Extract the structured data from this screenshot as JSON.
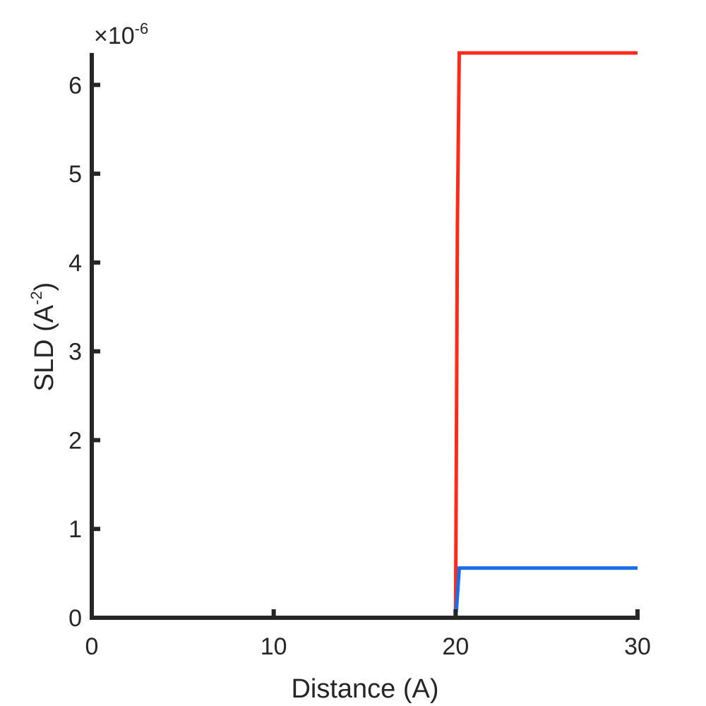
{
  "chart_data": {
    "type": "line",
    "xlabel": "Distance (A)",
    "ylabel": {
      "base": "SLD (A",
      "superscript": "-2",
      "close": ")"
    },
    "y_exponent": {
      "prefix": "×10",
      "power": "-6"
    },
    "xlim": [
      0,
      30
    ],
    "ylim": [
      0,
      6.36
    ],
    "x_ticks": [
      0,
      10,
      20,
      30
    ],
    "y_ticks": [
      0,
      1,
      2,
      3,
      4,
      5,
      6
    ],
    "grid": false,
    "legend": "none",
    "series": [
      {
        "color": "#ff2a18",
        "x": [
          0,
          20,
          20.1,
          20.2,
          30
        ],
        "y": [
          0,
          0,
          4.45,
          6.36,
          6.36
        ]
      },
      {
        "color": "#1a6ee8",
        "x": [
          0,
          20,
          20.05,
          20.2,
          30
        ],
        "y": [
          0,
          0,
          0.1,
          0.56,
          0.56
        ]
      }
    ]
  }
}
